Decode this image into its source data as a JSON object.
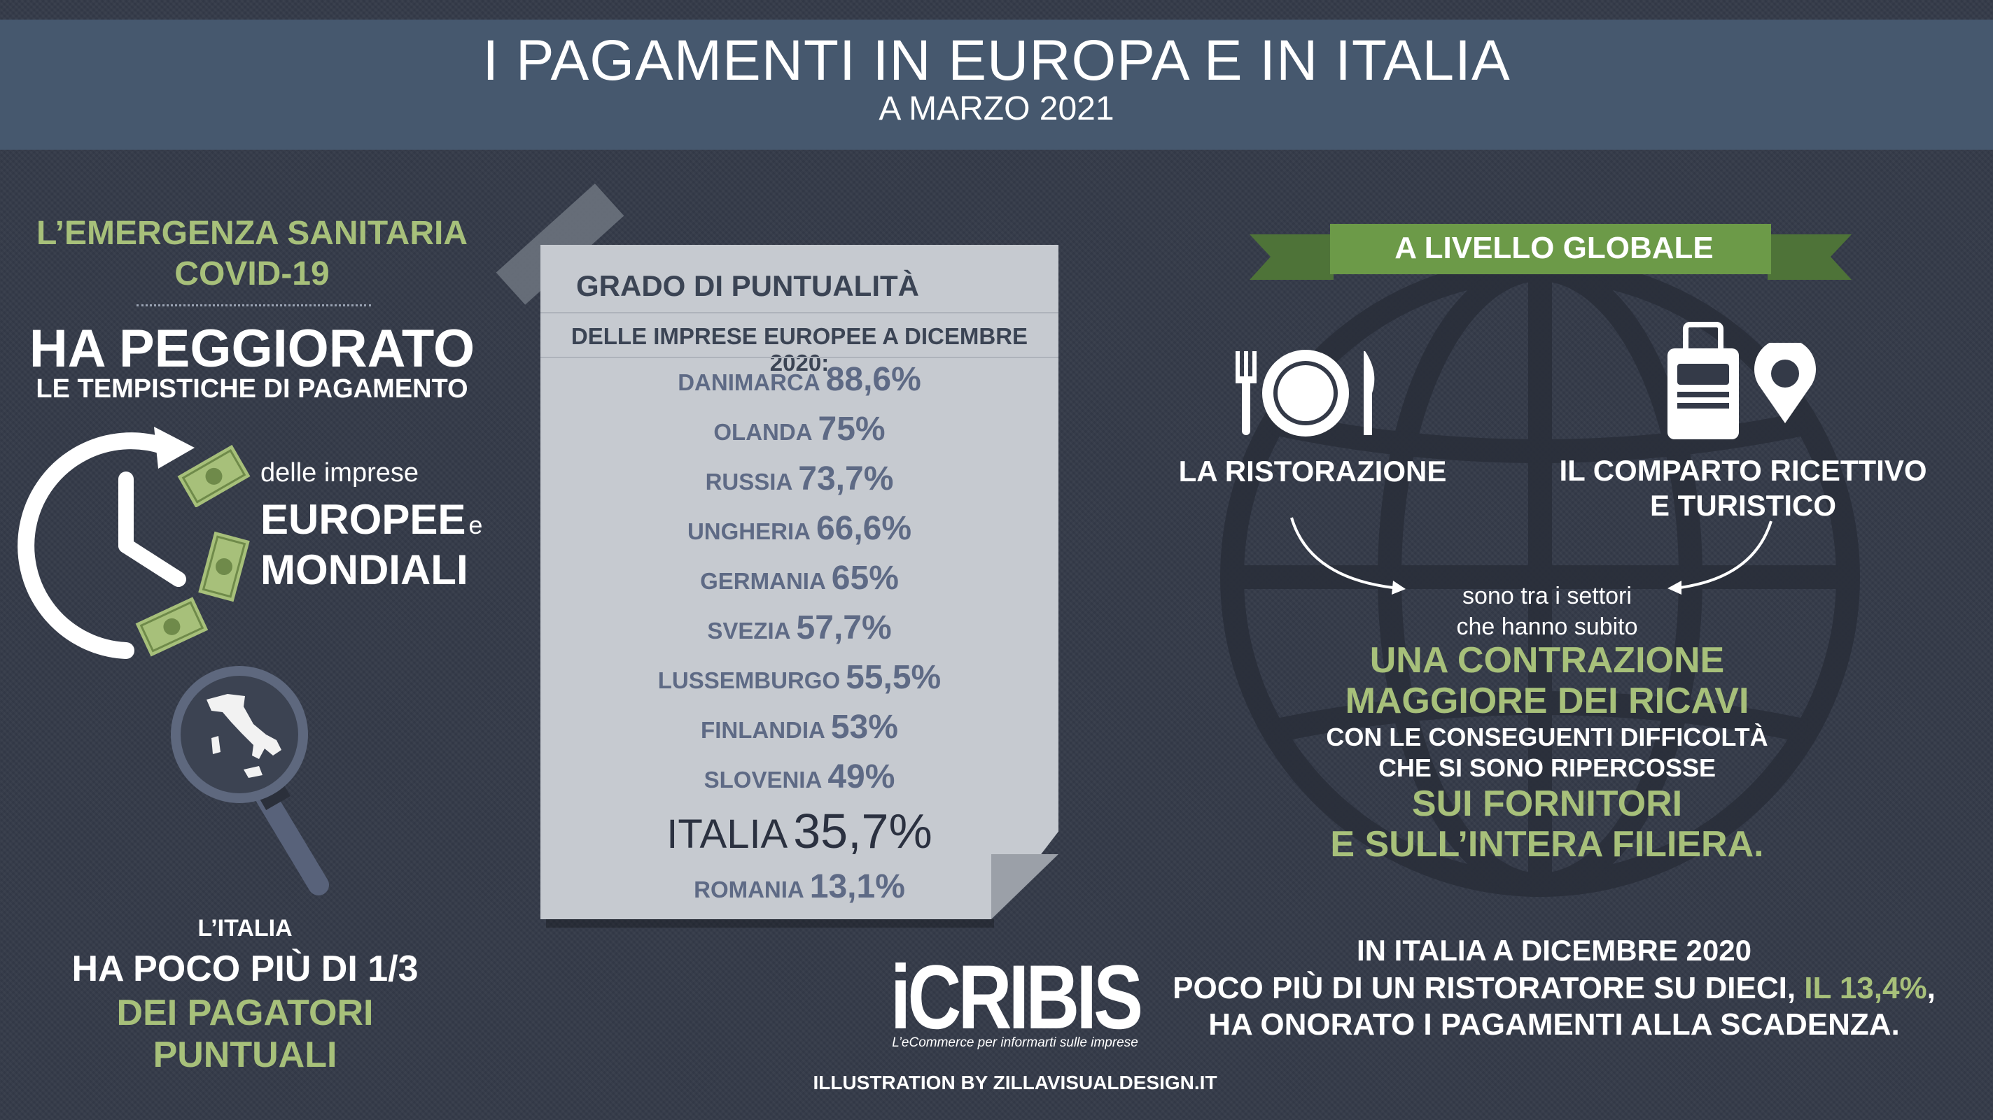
{
  "header": {
    "title": "I PAGAMENTI IN EUROPA E IN ITALIA",
    "subtitle": "A MARZO 2021"
  },
  "left": {
    "intro_line1": "L’EMERGENZA SANITARIA",
    "intro_line2": "COVID-19",
    "headline": "HA PEGGIORATO",
    "subline": "LE TEMPISTICHE DI PAGAMENTO",
    "delle": "delle imprese",
    "europee": "EUROPEE",
    "e": "e",
    "mondiali": "MONDIALI",
    "italia_label": "L’ITALIA",
    "poco_piu": "HA POCO PIÙ DI 1/3",
    "pagatori": "DEI PAGATORI PUNTUALI"
  },
  "paper": {
    "title": "GRADO DI PUNTUALITÀ",
    "subtitle": "DELLE IMPRESE EUROPEE A DICEMBRE 2020:",
    "rows": [
      {
        "country": "DANIMARCA",
        "value": "88,6%"
      },
      {
        "country": "OLANDA",
        "value": "75%"
      },
      {
        "country": "RUSSIA",
        "value": "73,7%"
      },
      {
        "country": "UNGHERIA",
        "value": "66,6%"
      },
      {
        "country": "GERMANIA",
        "value": "65%"
      },
      {
        "country": "SVEZIA",
        "value": "57,7%"
      },
      {
        "country": "LUSSEMBURGO",
        "value": "55,5%"
      },
      {
        "country": "FINLANDIA",
        "value": "53%"
      },
      {
        "country": "SLOVENIA",
        "value": "49%"
      },
      {
        "country": "ITALIA",
        "value": "35,7%"
      },
      {
        "country": "ROMANIA",
        "value": "13,1%"
      }
    ]
  },
  "right": {
    "ribbon": "A LIVELLO GLOBALE",
    "ristorazione": "LA RISTORAZIONE",
    "comparto_line1": "IL COMPARTO RICETTIVO",
    "comparto_line2": "E TURISTICO",
    "settori_line1": "sono tra i settori",
    "settori_line2": "che hanno subito",
    "contr_line1": "UNA CONTRAZIONE",
    "contr_line2": "MAGGIORE DEI RICAVI",
    "cons_line1": "CON LE CONSEGUENTI DIFFICOLTÀ",
    "cons_line2": "CHE SI SONO RIPERCOSSE",
    "forn_line1": "SUI FORNITORI",
    "forn_line2": "E SULL’INTERA FILIERA.",
    "italia_line1": "IN ITALIA A DICEMBRE 2020",
    "italia_line2a": "POCO PIÙ DI UN RISTORATORE SU DIECI,",
    "italia_line2b": "IL 13,4%",
    "italia_line2c": ",",
    "italia_line3": "HA ONORATO I PAGAMENTI ALLA SCADENZA."
  },
  "footer": {
    "logo": "iCRIBIS",
    "tagline": "L’eCommerce per informarti sulle imprese",
    "credit": "ILLUSTRATION BY ZILLAVISUALDESIGN.IT"
  },
  "colors": {
    "background": "#343a48",
    "header_band": "#46586e",
    "accent_green": "#a7c07a",
    "ribbon_green": "#6c9a48",
    "paper": "#c6cad0",
    "paper_text": "#5e6a85"
  },
  "icons": [
    "clock-arrow-icon",
    "banknote-icon",
    "magnifier-italy-icon",
    "plate-cutlery-icon",
    "suitcase-icon",
    "map-pin-icon",
    "globe-icon",
    "curved-arrow-icon"
  ]
}
